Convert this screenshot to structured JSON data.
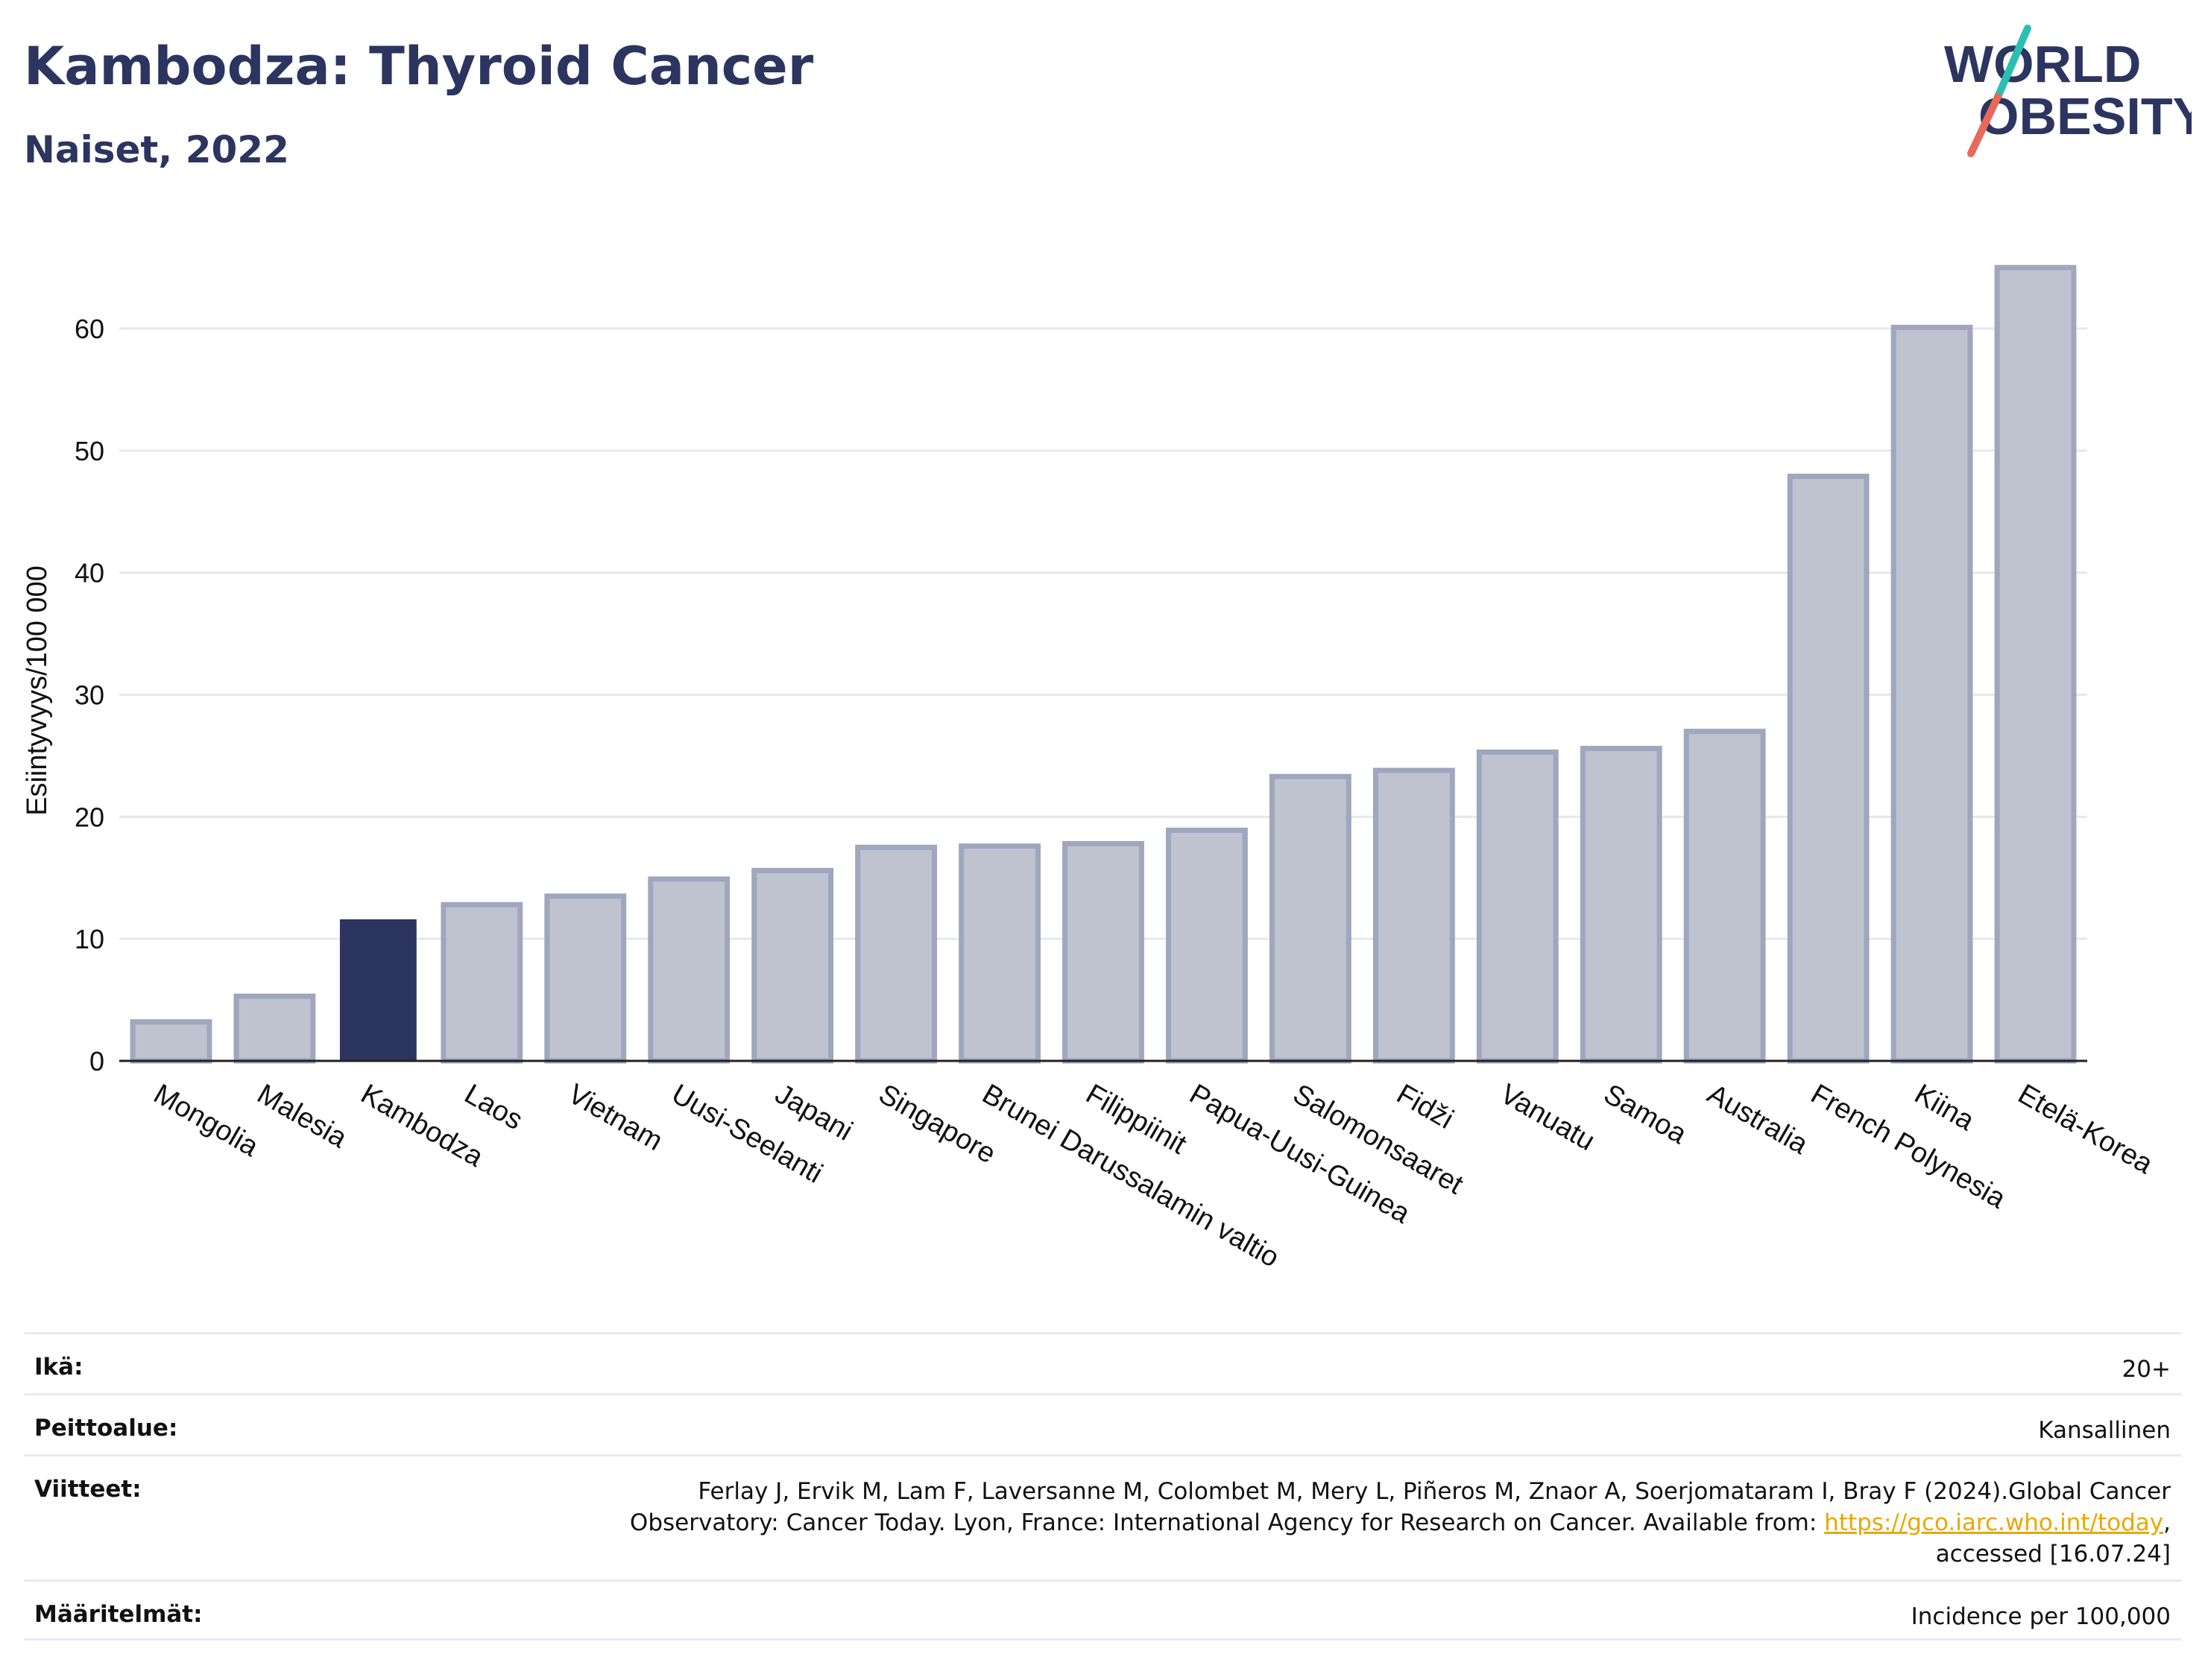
{
  "header": {
    "title": "Kambodza: Thyroid Cancer",
    "subtitle": "Naiset, 2022"
  },
  "logo": {
    "line1": "WORLD",
    "line2": "OBESITY",
    "colors": {
      "text": "#2b3560",
      "slash_top": "#2bbfb3",
      "slash_bottom": "#e8685a"
    }
  },
  "chart_data": {
    "type": "bar",
    "ylabel": "Esiintyvyys/100 000",
    "xlabel": "",
    "ylim": [
      0,
      68
    ],
    "yticks": [
      0,
      10,
      20,
      30,
      40,
      50,
      60
    ],
    "grid": true,
    "categories": [
      "Mongolia",
      "Malesia",
      "Kambodza",
      "Laos",
      "Vietnam",
      "Uusi-Seelanti",
      "Japani",
      "Singapore",
      "Brunei Darussalamin valtio",
      "Filippiinit",
      "Papua-Uusi-Guinea",
      "Salomonsaaret",
      "Fidži",
      "Vanuatu",
      "Samoa",
      "Australia",
      "French Polynesia",
      "Kiina",
      "Etelä-Korea"
    ],
    "values": [
      3.2,
      5.3,
      11.6,
      12.8,
      13.5,
      14.9,
      15.6,
      17.5,
      17.6,
      17.8,
      18.9,
      23.3,
      23.8,
      25.3,
      25.6,
      27.0,
      47.9,
      60.1,
      65.0
    ],
    "highlight": "Kambodza",
    "colors": {
      "bar": "#bfc3d0",
      "bar_edge": "#9fa6bd",
      "highlight": "#2b3560"
    }
  },
  "meta": {
    "age_label": "Ikä:",
    "age_value": "20+",
    "coverage_label": "Peittoalue:",
    "coverage_value": "Kansallinen",
    "references_label": "Viitteet:",
    "references_line1": "Ferlay J, Ervik M, Lam F, Laversanne M, Colombet M, Mery L, Piñeros M, Znaor A, Soerjomataram I, Bray F (2024).Global Cancer",
    "references_line2_pre": "Observatory: Cancer Today. Lyon, France: International Agency for Research on Cancer. Available from: ",
    "references_link": "https://gco.iarc.who.int/today",
    "references_line2_post": ",",
    "references_line3": "accessed [16.07.24]",
    "definitions_label": "Määritelmät:",
    "definitions_value": "Incidence per 100,000"
  }
}
